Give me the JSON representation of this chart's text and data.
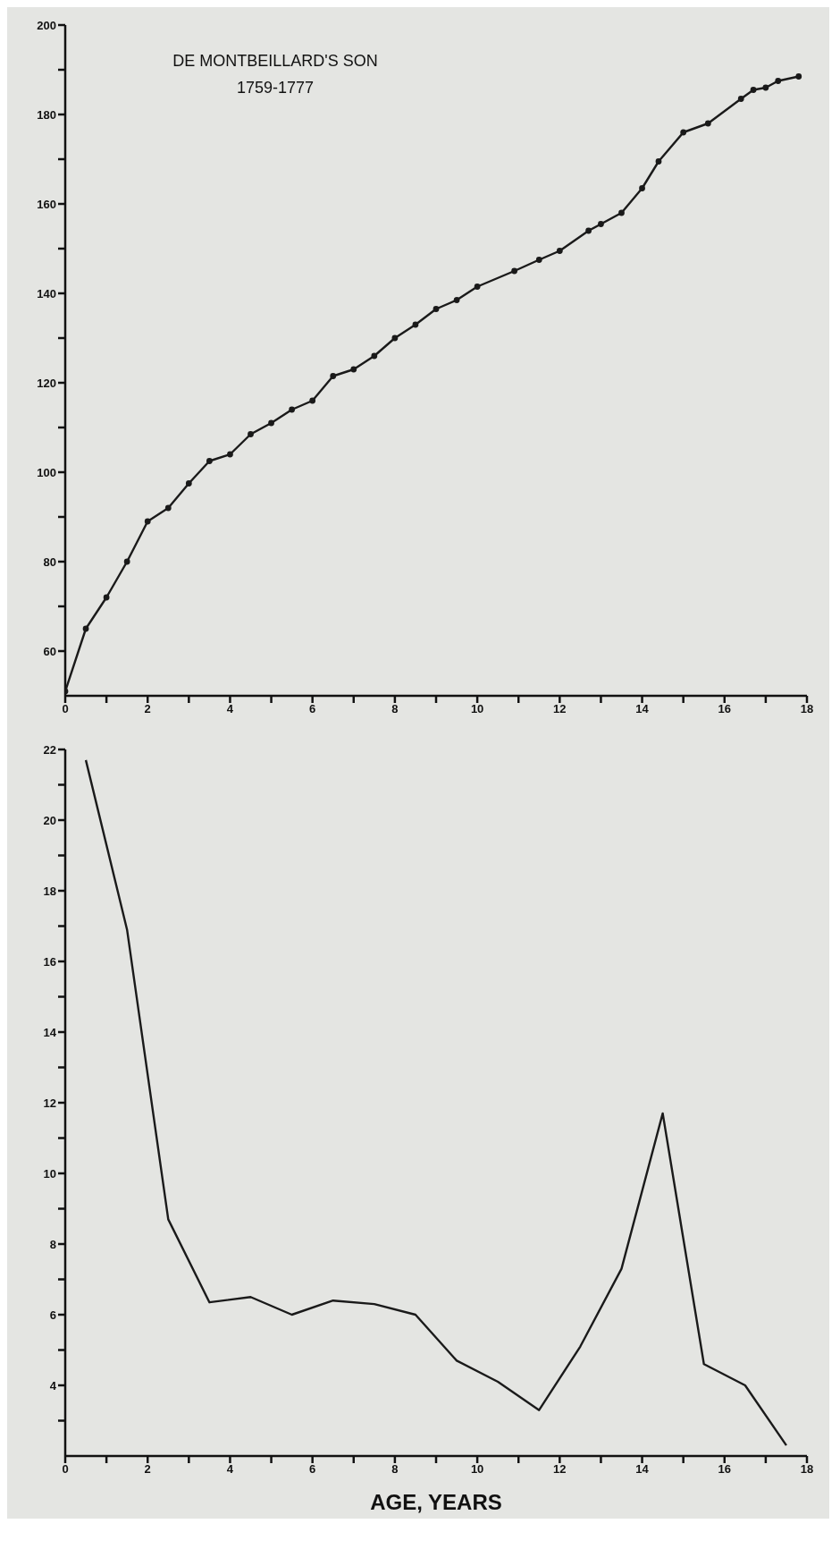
{
  "chart_data": [
    {
      "type": "line",
      "title": "DE MONTBEILLARD'S SON",
      "subtitle": "1759-1777",
      "x": [
        0,
        0.5,
        1,
        1.5,
        2,
        2.5,
        3,
        3.5,
        4,
        4.5,
        5,
        5.5,
        6,
        6.5,
        7,
        7.5,
        8,
        8.5,
        9,
        9.5,
        10,
        10.9,
        11.5,
        12,
        12.7,
        13,
        13.5,
        14,
        14.4,
        15,
        15.6,
        16.4,
        16.7,
        17,
        17.3,
        17.8
      ],
      "series": [
        {
          "color": "#1a1a1a",
          "values": [
            51,
            65,
            72,
            80,
            89,
            92,
            97.5,
            102.5,
            104,
            108.5,
            111,
            114,
            116,
            121.5,
            123,
            126,
            130,
            133,
            136.5,
            138.5,
            141.5,
            145,
            147.5,
            149.5,
            154,
            155.5,
            158,
            163.5,
            169.5,
            176,
            178,
            183.5,
            185.5,
            186,
            187.5,
            188.5
          ]
        }
      ],
      "xlim": [
        0,
        18
      ],
      "ylim": [
        50,
        200
      ],
      "xticks": [
        0,
        {
          "value": 1,
          "label": null
        },
        2,
        {
          "value": 3,
          "label": null
        },
        4,
        {
          "value": 5,
          "label": null
        },
        6,
        {
          "value": 7,
          "label": null
        },
        8,
        {
          "value": 9,
          "label": null
        },
        10,
        {
          "value": 11,
          "label": null
        },
        12,
        {
          "value": 13,
          "label": null
        },
        14,
        {
          "value": 15,
          "label": null
        },
        16,
        {
          "value": 17,
          "label": null
        },
        18
      ],
      "yticks": [
        60,
        {
          "value": 70,
          "label": null
        },
        80,
        {
          "value": 90,
          "label": null
        },
        100,
        {
          "value": 110,
          "label": null
        },
        120,
        {
          "value": 130,
          "label": null
        },
        140,
        {
          "value": 150,
          "label": null
        },
        160,
        {
          "value": 170,
          "label": null
        },
        180,
        {
          "value": 190,
          "label": null
        },
        200
      ],
      "marker": "circle",
      "line_style": "solid"
    },
    {
      "type": "line",
      "xlabel": "AGE, YEARS",
      "x": [
        0.5,
        1.5,
        2.5,
        3.5,
        4.5,
        5.5,
        6.5,
        7.5,
        8.5,
        9.5,
        10.5,
        11.5,
        12.5,
        13.5,
        14.5,
        15.5,
        16.5,
        17.5
      ],
      "series": [
        {
          "color": "#1a1a1a",
          "values": [
            21.7,
            16.9,
            8.7,
            6.35,
            6.5,
            6,
            6.4,
            6.3,
            6,
            4.7,
            4.1,
            3.3,
            5.1,
            7.3,
            11.7,
            4.6,
            4,
            2.3
          ]
        }
      ],
      "xlim": [
        0,
        18
      ],
      "ylim": [
        2,
        22
      ],
      "xticks": [
        0,
        {
          "value": 1,
          "label": null
        },
        2,
        {
          "value": 3,
          "label": null
        },
        4,
        {
          "value": 5,
          "label": null
        },
        6,
        {
          "value": 7,
          "label": null
        },
        8,
        {
          "value": 9,
          "label": null
        },
        10,
        {
          "value": 11,
          "label": null
        },
        12,
        {
          "value": 13,
          "label": null
        },
        14,
        {
          "value": 15,
          "label": null
        },
        16,
        {
          "value": 17,
          "label": null
        },
        18
      ],
      "yticks": [
        {
          "value": 3,
          "label": null
        },
        4,
        {
          "value": 5,
          "label": null
        },
        6,
        {
          "value": 7,
          "label": null
        },
        8,
        {
          "value": 9,
          "label": null
        },
        10,
        {
          "value": 11,
          "label": null
        },
        12,
        {
          "value": 13,
          "label": null
        },
        14,
        {
          "value": 15,
          "label": null
        },
        16,
        {
          "value": 17,
          "label": null
        },
        18,
        {
          "value": 19,
          "label": null
        },
        20,
        {
          "value": 21,
          "label": null
        },
        22
      ],
      "marker": "none",
      "line_style": "solid"
    }
  ]
}
